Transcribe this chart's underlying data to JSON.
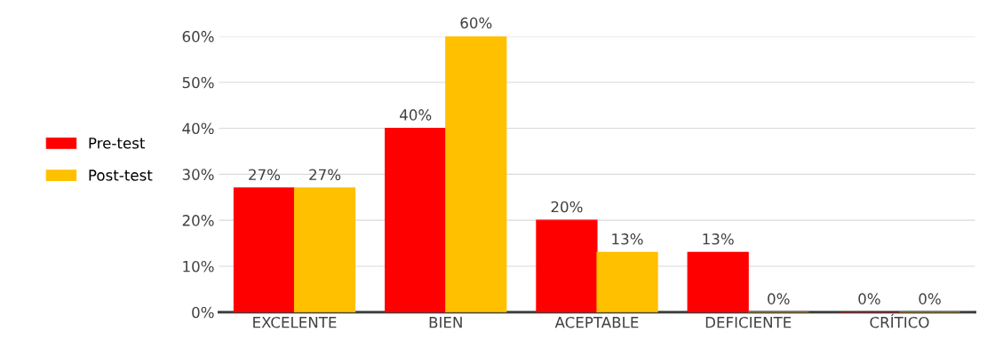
{
  "chart_data": {
    "type": "bar",
    "categories": [
      "EXCELENTE",
      "BIEN",
      "ACEPTABLE",
      "DEFICIENTE",
      "CRÍTICO"
    ],
    "series": [
      {
        "name": "Pre-test",
        "color": "#ff0000",
        "values": [
          27,
          40,
          20,
          13,
          0
        ],
        "value_labels": [
          "27%",
          "40%",
          "20%",
          "13%",
          "0%"
        ]
      },
      {
        "name": "Post-test",
        "color": "#ffc000",
        "values": [
          27,
          60,
          13,
          0,
          0
        ],
        "value_labels": [
          "27%",
          "60%",
          "13%",
          "0%",
          "0%"
        ]
      }
    ],
    "ylim": [
      0,
      60
    ],
    "yticks": [
      {
        "value": 0,
        "label": "0%"
      },
      {
        "value": 10,
        "label": "10%"
      },
      {
        "value": 20,
        "label": "20%"
      },
      {
        "value": 30,
        "label": "30%"
      },
      {
        "value": 40,
        "label": "40%"
      },
      {
        "value": 50,
        "label": "50%"
      },
      {
        "value": 60,
        "label": "60%"
      }
    ],
    "grid": "y",
    "legend": "left"
  }
}
